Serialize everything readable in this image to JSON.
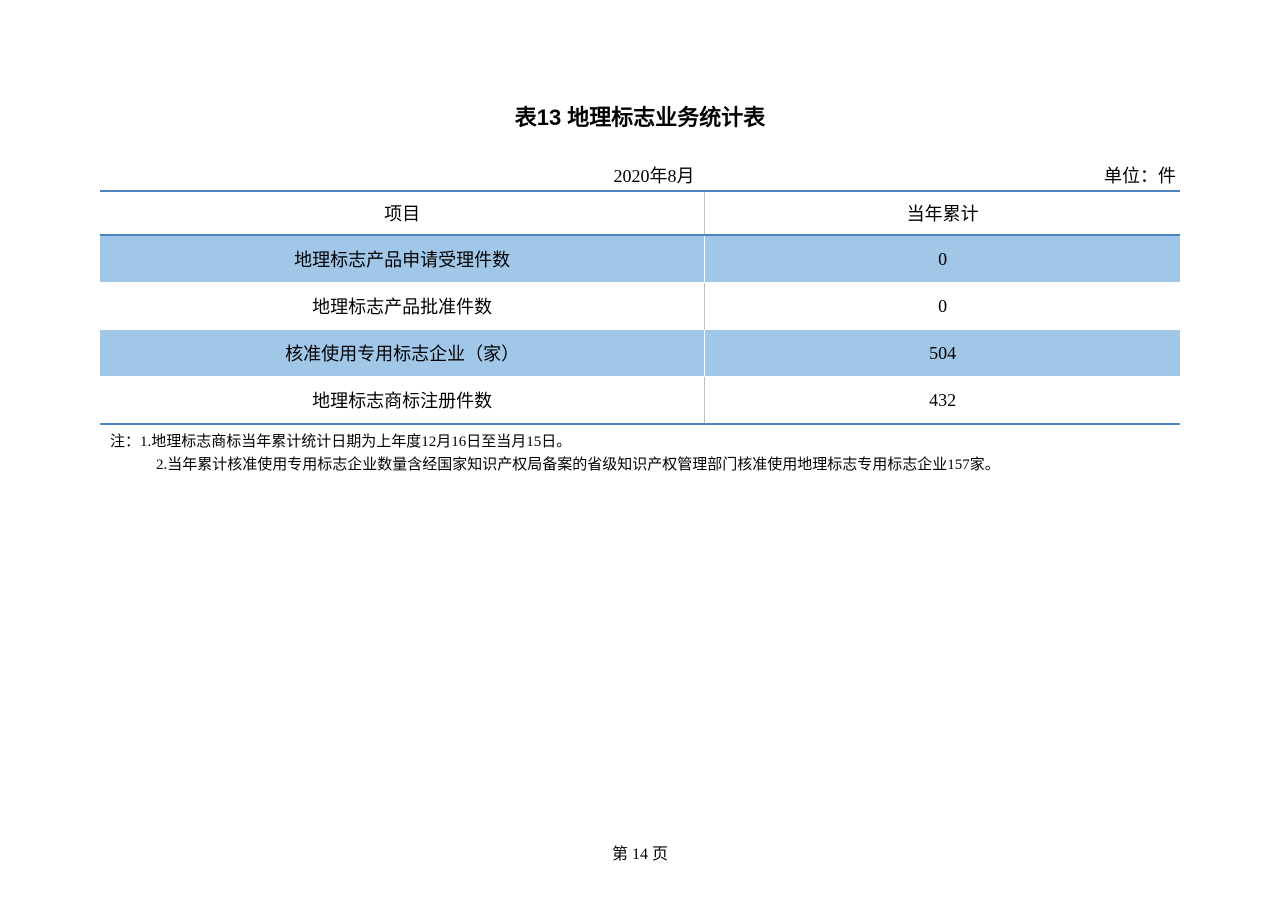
{
  "title": "表13 地理标志业务统计表",
  "meta": {
    "date": "2020年8月",
    "unit": "单位：件"
  },
  "table": {
    "type": "table",
    "columns": [
      "项目",
      "当年累计"
    ],
    "column_widths": [
      "56%",
      "44%"
    ],
    "rows": [
      {
        "label": "地理标志产品申请受理件数",
        "value": "0",
        "alt": true
      },
      {
        "label": "地理标志产品批准件数",
        "value": "0",
        "alt": false
      },
      {
        "label": "核准使用专用标志企业（家）",
        "value": "504",
        "alt": true
      },
      {
        "label": "地理标志商标注册件数",
        "value": "432",
        "alt": false
      }
    ],
    "header_border_color": "#4f81bd",
    "alt_row_color": "#a0c6e8",
    "cell_divider_color": "#c0c0c0",
    "background_color": "#ffffff",
    "fontsize": 18
  },
  "notes": {
    "prefix": "注：",
    "line1": "1.地理标志商标当年累计统计日期为上年度12月16日至当月15日。",
    "line2": "2.当年累计核准使用专用标志企业数量含经国家知识产权局备案的省级知识产权管理部门核准使用地理标志专用标志企业157家。"
  },
  "page_number": "第 14 页"
}
